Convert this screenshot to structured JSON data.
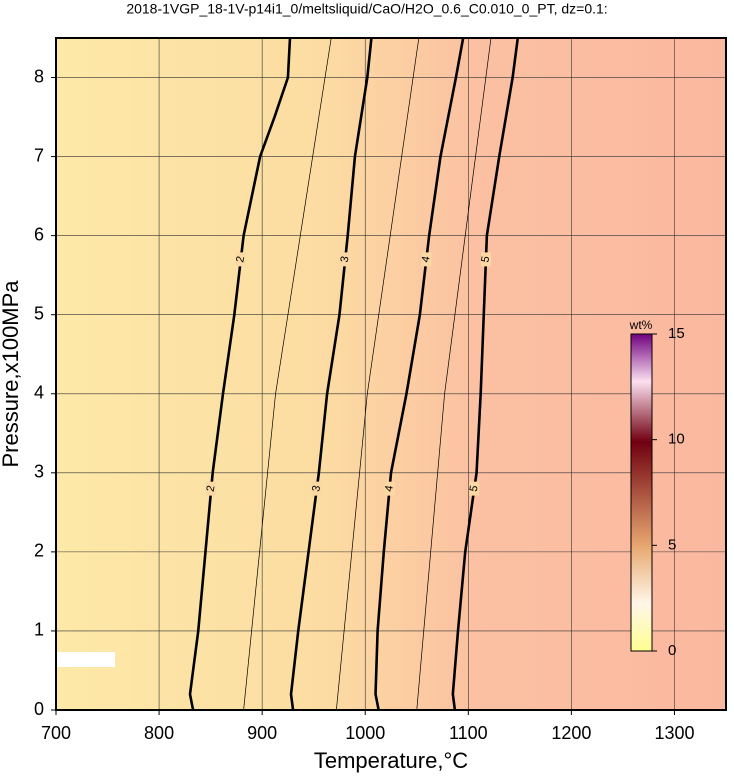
{
  "chart_data": {
    "type": "contour",
    "title": "2018-1VGP_18-1V-p14i1_0/meltsliquid/CaO/H2O_0.6_C0.010_0_PT, dz=0.1:",
    "x_label": "Temperature,°C",
    "y_label": "Pressure,x100MPa",
    "xlim": [
      700,
      1350
    ],
    "ylim": [
      0,
      8.5
    ],
    "xticks": [
      700,
      800,
      900,
      1000,
      1100,
      1200,
      1300
    ],
    "yticks": [
      0,
      1,
      2,
      3,
      4,
      5,
      6,
      7,
      8
    ],
    "grid": true,
    "contours": [
      {
        "level": 2,
        "bold": true,
        "pressure": [
          0,
          0.2,
          1,
          2,
          3,
          4,
          5,
          6,
          7,
          7.5,
          8,
          8.5
        ],
        "temperature": [
          833,
          830,
          838,
          845,
          852,
          862,
          873,
          882,
          898,
          912,
          925,
          927
        ]
      },
      {
        "level": 3,
        "bold": true,
        "pressure": [
          0,
          0.2,
          1,
          2,
          3,
          4,
          5,
          6,
          7,
          8,
          8.5
        ],
        "temperature": [
          930,
          928,
          935,
          945,
          955,
          963,
          975,
          983,
          990,
          1002,
          1006
        ]
      },
      {
        "level": 4,
        "bold": true,
        "pressure": [
          0,
          0.2,
          1,
          2,
          3,
          4,
          5,
          6,
          7,
          8,
          8.5
        ],
        "temperature": [
          1013,
          1010,
          1012,
          1018,
          1025,
          1040,
          1053,
          1062,
          1073,
          1088,
          1095
        ]
      },
      {
        "level": 5,
        "bold": true,
        "pressure": [
          0,
          0.2,
          1,
          2,
          3,
          4,
          5,
          6,
          7,
          8,
          8.5
        ],
        "temperature": [
          1087,
          1085,
          1090,
          1097,
          1108,
          1112,
          1115,
          1118,
          1130,
          1143,
          1148
        ]
      },
      {
        "level": 2.5,
        "bold": false,
        "pressure": [
          0,
          4,
          8.5
        ],
        "temperature": [
          882,
          913,
          967
        ]
      },
      {
        "level": 3.5,
        "bold": false,
        "pressure": [
          0,
          4,
          8.5
        ],
        "temperature": [
          972,
          1002,
          1052
        ]
      },
      {
        "level": 4.5,
        "bold": false,
        "pressure": [
          0,
          4,
          8.5
        ],
        "temperature": [
          1050,
          1077,
          1122
        ]
      }
    ],
    "label_pressures": [
      5.7,
      2.8
    ],
    "colorbar": {
      "label": "wt%",
      "lim": [
        0,
        15
      ],
      "ticks": [
        0,
        5,
        10,
        15
      ]
    }
  }
}
